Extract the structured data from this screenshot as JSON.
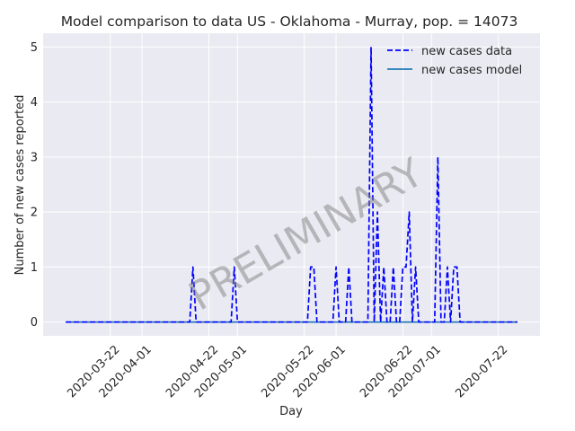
{
  "chart_data": {
    "type": "line",
    "title": "Model comparison to data US - Oklahoma - Murray, pop. = 14073",
    "xlabel": "Day",
    "ylabel": "Number of new cases reported",
    "watermark": "PRELIMINARY",
    "x_range": [
      "2020-03-08",
      "2020-07-28"
    ],
    "ylim": [
      -0.25,
      5.25
    ],
    "yticks": [
      0,
      1,
      2,
      3,
      4,
      5
    ],
    "xticks": [
      "2020-03-22",
      "2020-04-01",
      "2020-04-22",
      "2020-05-01",
      "2020-05-22",
      "2020-06-01",
      "2020-06-22",
      "2020-07-01",
      "2020-07-22"
    ],
    "grid": true,
    "legend_position": "top-right",
    "series": [
      {
        "name": "new cases data",
        "style": "dashed",
        "color": "#0000ff",
        "x": [
          "2020-03-08",
          "2020-04-16",
          "2020-04-17",
          "2020-04-18",
          "2020-04-29",
          "2020-04-30",
          "2020-05-01",
          "2020-05-23",
          "2020-05-24",
          "2020-05-25",
          "2020-05-26",
          "2020-05-31",
          "2020-06-01",
          "2020-06-02",
          "2020-06-04",
          "2020-06-05",
          "2020-06-06",
          "2020-06-11",
          "2020-06-12",
          "2020-06-13",
          "2020-06-14",
          "2020-06-15",
          "2020-06-16",
          "2020-06-17",
          "2020-06-18",
          "2020-06-19",
          "2020-06-20",
          "2020-06-21",
          "2020-06-22",
          "2020-06-23",
          "2020-06-24",
          "2020-06-25",
          "2020-06-26",
          "2020-06-27",
          "2020-06-28",
          "2020-06-29",
          "2020-07-02",
          "2020-07-03",
          "2020-07-04",
          "2020-07-05",
          "2020-07-06",
          "2020-07-07",
          "2020-07-08",
          "2020-07-09",
          "2020-07-10",
          "2020-07-11",
          "2020-07-28"
        ],
        "y": [
          0,
          0,
          1,
          0,
          0,
          1,
          0,
          0,
          1,
          1,
          0,
          0,
          1,
          0,
          0,
          1,
          0,
          0,
          5,
          0,
          2,
          0,
          1,
          0,
          0,
          1,
          0,
          0,
          1,
          1,
          2,
          0,
          1,
          0,
          0,
          0,
          0,
          3,
          0,
          0,
          1,
          0,
          1,
          1,
          0,
          0,
          0
        ]
      },
      {
        "name": "new cases model",
        "style": "solid",
        "color": "#1f77b4",
        "x": [
          "2020-03-08",
          "2020-07-28"
        ],
        "y": [
          0,
          0
        ]
      }
    ]
  },
  "colors": {
    "plot_background": "#eaeaf2",
    "grid": "#ffffff",
    "data_line": "#0000ff",
    "model_line": "#1f77b4",
    "watermark": "#808080"
  }
}
